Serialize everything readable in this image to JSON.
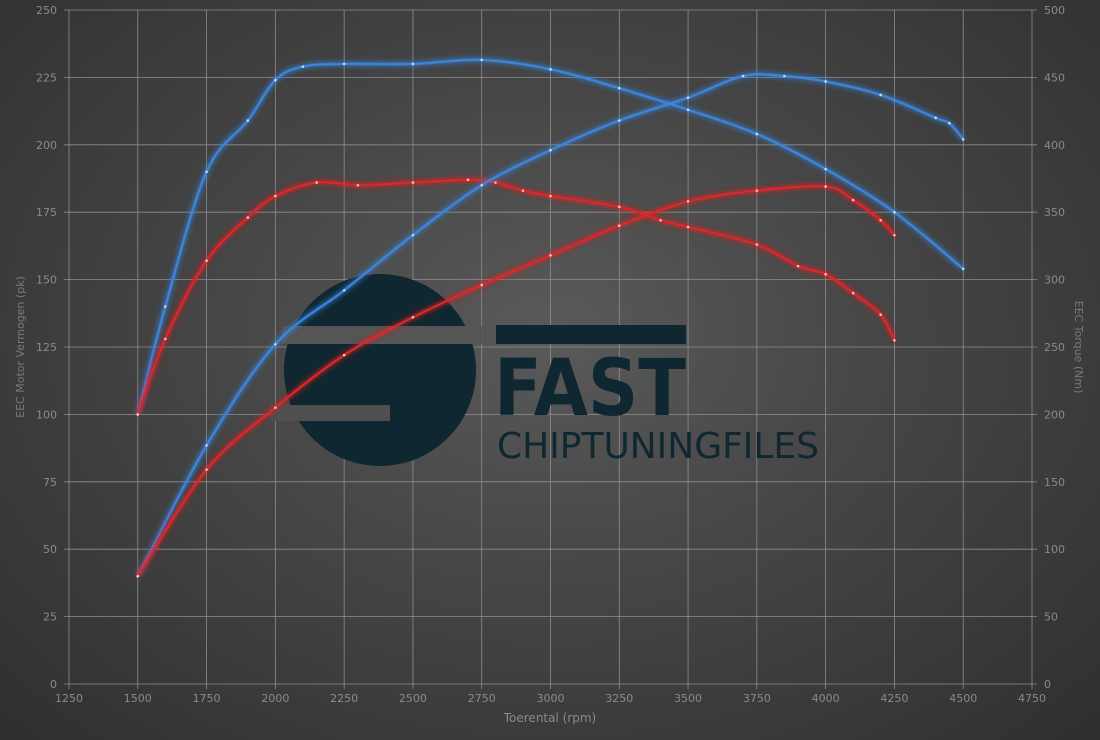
{
  "watermark": {
    "text_top": "FAST",
    "text_bottom": "CHIPTUNINGFILES",
    "color": "#0f2730"
  },
  "chart_data": {
    "type": "line",
    "xlabel": "Toerental (rpm)",
    "ylabel": "EEC Motor Vermogen (pk)",
    "y2label": "EEC Torque (Nm)",
    "xlim": [
      1250,
      4750
    ],
    "ylim": [
      0,
      250
    ],
    "y2lim": [
      0,
      500
    ],
    "xticks": [
      1250,
      1500,
      1750,
      2000,
      2250,
      2500,
      2750,
      3000,
      3250,
      3500,
      3750,
      4000,
      4250,
      4500,
      4750
    ],
    "yticks": [
      0,
      25,
      50,
      75,
      100,
      125,
      150,
      175,
      200,
      225,
      250
    ],
    "y2ticks": [
      0,
      50,
      100,
      150,
      200,
      250,
      300,
      350,
      400,
      450,
      500
    ],
    "grid": true,
    "series": [
      {
        "axis": "left",
        "color": "#3d86e0",
        "x": [
          1500,
          1600,
          1750,
          1900,
          2000,
          2100,
          2250,
          2500,
          2750,
          3000,
          3250,
          3500,
          3750,
          4000,
          4250,
          4500
        ],
        "y": [
          100,
          140,
          190,
          209,
          224,
          229,
          230,
          230,
          231.5,
          228,
          221,
          213,
          204,
          191,
          175,
          154
        ]
      },
      {
        "axis": "left",
        "color": "#e0262a",
        "x": [
          1500,
          1600,
          1750,
          1900,
          2000,
          2150,
          2300,
          2500,
          2700,
          2800,
          2900,
          3000,
          3250,
          3400,
          3500,
          3750,
          3900,
          4000,
          4100,
          4200,
          4250
        ],
        "y": [
          100,
          128,
          157,
          173,
          181,
          186,
          185,
          186,
          187,
          186,
          183,
          181,
          177,
          172,
          169.5,
          163,
          155,
          152,
          145,
          137,
          127.5
        ]
      },
      {
        "axis": "right",
        "color": "#3d86e0",
        "x": [
          1500,
          1750,
          2000,
          2250,
          2500,
          2750,
          3000,
          3250,
          3500,
          3700,
          3850,
          4000,
          4200,
          4400,
          4450,
          4500
        ],
        "y": [
          80,
          177,
          252,
          292,
          333,
          370,
          396,
          418,
          435,
          451,
          451,
          447,
          437,
          420,
          416,
          404
        ]
      },
      {
        "axis": "right",
        "color": "#e0262a",
        "x": [
          1500,
          1750,
          2000,
          2250,
          2500,
          2750,
          3000,
          3250,
          3500,
          3750,
          4000,
          4100,
          4200,
          4250
        ],
        "y": [
          80,
          159,
          205,
          244,
          272,
          296,
          318,
          340,
          358,
          366,
          369,
          359,
          344,
          333
        ]
      }
    ]
  }
}
